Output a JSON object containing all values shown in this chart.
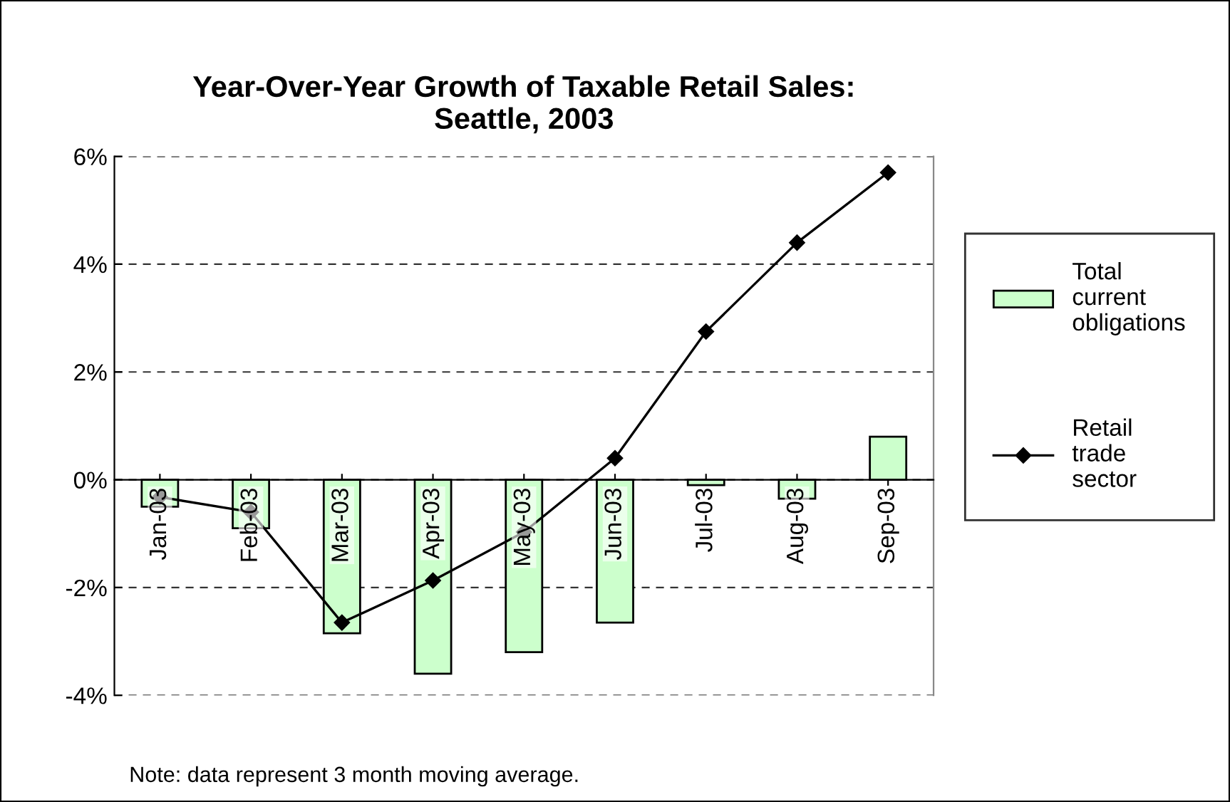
{
  "chart_data": {
    "type": "bar",
    "title": "Year-Over-Year Growth of Taxable Retail Sales:\nSeattle, 2003",
    "categories": [
      "Jan-03",
      "Feb-03",
      "Mar-03",
      "Apr-03",
      "May-03",
      "Jun-03",
      "Jul-03",
      "Aug-03",
      "Sep-03"
    ],
    "series": [
      {
        "name": "Total current obligations",
        "color": "#ccffcc",
        "values": [
          -0.5,
          -0.9,
          -2.85,
          -3.6,
          -3.2,
          -2.65,
          -0.1,
          -0.35,
          0.8
        ]
      },
      {
        "name": "Retail trade sector",
        "type": "line",
        "color": "#000000",
        "marker": "diamond",
        "values": [
          -0.32,
          -0.6,
          -2.65,
          -1.87,
          -0.97,
          0.4,
          2.75,
          4.4,
          5.7
        ]
      }
    ],
    "ylim": [
      -4,
      6
    ],
    "yticks": [
      {
        "value": -4,
        "label": "-4%"
      },
      {
        "value": -2,
        "label": "-2%"
      },
      {
        "value": 0,
        "label": "0%"
      },
      {
        "value": 2,
        "label": "2%"
      },
      {
        "value": 4,
        "label": "4%"
      },
      {
        "value": 6,
        "label": "6%"
      }
    ],
    "grid": "y",
    "legend": "right",
    "annotations": [
      "Note: data represent 3 month moving average."
    ]
  }
}
